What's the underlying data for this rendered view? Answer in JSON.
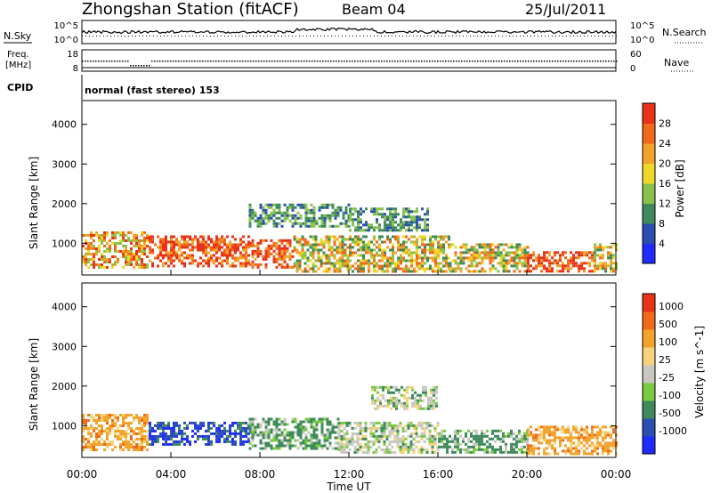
{
  "header": {
    "title": "Zhongshan Station (fitACF)",
    "beam": "Beam 04",
    "date": "25/Jul/2011"
  },
  "noise_panel": {
    "left_label": "N.Sky",
    "left_ticks": [
      "10^5",
      "10^0"
    ],
    "right_label": "N.Search",
    "right_ticks": [
      "10^5",
      "10^0"
    ]
  },
  "freq_panel": {
    "left_label_1": "Freq.",
    "left_label_2": "[MHz]",
    "left_ticks": [
      "18",
      "8"
    ],
    "right_label": "Nave",
    "right_ticks": [
      "60",
      "0"
    ]
  },
  "cpid_panel": {
    "label": "CPID",
    "text": "normal (fast stereo) 153"
  },
  "x_axis": {
    "label": "Time UT",
    "ticks": [
      "00:00",
      "04:00",
      "08:00",
      "12:00",
      "16:00",
      "20:00",
      "00:00"
    ]
  },
  "chart_data": [
    {
      "type": "heatmap",
      "name": "Power",
      "ylabel": "Slant Range [km]",
      "y_ticks": [
        "1000",
        "2000",
        "3000",
        "4000"
      ],
      "ylim": [
        200,
        4600
      ],
      "xlim": [
        0,
        24
      ],
      "colorbar": {
        "label": "Power [dB]",
        "ticks": [
          "4",
          "8",
          "12",
          "16",
          "20",
          "24",
          "28"
        ],
        "colors": [
          "#1f2bff",
          "#2a4fb0",
          "#3e8a5a",
          "#88c24a",
          "#f0d82a",
          "#f3a22a",
          "#f06a1a",
          "#e8321a"
        ]
      },
      "echo_regions": [
        {
          "t_start": 0.0,
          "t_end": 3.0,
          "r_min": 400,
          "r_max": 1300,
          "level": "high"
        },
        {
          "t_start": 3.0,
          "t_end": 7.5,
          "r_min": 400,
          "r_max": 1200,
          "level": "very-high"
        },
        {
          "t_start": 7.5,
          "t_end": 9.5,
          "r_min": 400,
          "r_max": 1100,
          "level": "very-high"
        },
        {
          "t_start": 9.5,
          "t_end": 12.0,
          "r_min": 300,
          "r_max": 1200,
          "level": "medium"
        },
        {
          "t_start": 7.5,
          "t_end": 12.0,
          "r_min": 1400,
          "r_max": 2000,
          "level": "low"
        },
        {
          "t_start": 12.0,
          "t_end": 15.5,
          "r_min": 1300,
          "r_max": 1900,
          "level": "low"
        },
        {
          "t_start": 12.0,
          "t_end": 16.5,
          "r_min": 300,
          "r_max": 1200,
          "level": "medium"
        },
        {
          "t_start": 16.5,
          "t_end": 20.0,
          "r_min": 300,
          "r_max": 1000,
          "level": "medium"
        },
        {
          "t_start": 20.0,
          "t_end": 23.0,
          "r_min": 300,
          "r_max": 800,
          "level": "very-high"
        },
        {
          "t_start": 23.0,
          "t_end": 24.0,
          "r_min": 300,
          "r_max": 1000,
          "level": "medium"
        }
      ]
    },
    {
      "type": "heatmap",
      "name": "Velocity",
      "ylabel": "Slant Range [km]",
      "y_ticks": [
        "1000",
        "2000",
        "3000",
        "4000"
      ],
      "ylim": [
        200,
        4600
      ],
      "xlim": [
        0,
        24
      ],
      "colorbar": {
        "label": "Velocity [m s^-1]",
        "ticks": [
          "1000",
          "500",
          "100",
          "25",
          "-25",
          "-100",
          "-500",
          "-1000"
        ],
        "colors": [
          "#1f2bff",
          "#2a4fb0",
          "#3e8a5a",
          "#7ac943",
          "#c8c8c0",
          "#f6d27a",
          "#f3a22a",
          "#f06a1a",
          "#e8321a"
        ]
      },
      "echo_regions": [
        {
          "t_start": 0.0,
          "t_end": 3.0,
          "r_min": 400,
          "r_max": 1300,
          "level": "orange"
        },
        {
          "t_start": 3.0,
          "t_end": 7.5,
          "r_min": 500,
          "r_max": 1100,
          "level": "blue"
        },
        {
          "t_start": 7.5,
          "t_end": 11.5,
          "r_min": 400,
          "r_max": 1200,
          "level": "green"
        },
        {
          "t_start": 11.5,
          "t_end": 16.0,
          "r_min": 300,
          "r_max": 1100,
          "level": "grey"
        },
        {
          "t_start": 13.0,
          "t_end": 16.0,
          "r_min": 1400,
          "r_max": 2000,
          "level": "grey"
        },
        {
          "t_start": 16.0,
          "t_end": 20.0,
          "r_min": 300,
          "r_max": 900,
          "level": "green"
        },
        {
          "t_start": 20.0,
          "t_end": 24.0,
          "r_min": 300,
          "r_max": 1000,
          "level": "orange"
        }
      ]
    }
  ]
}
